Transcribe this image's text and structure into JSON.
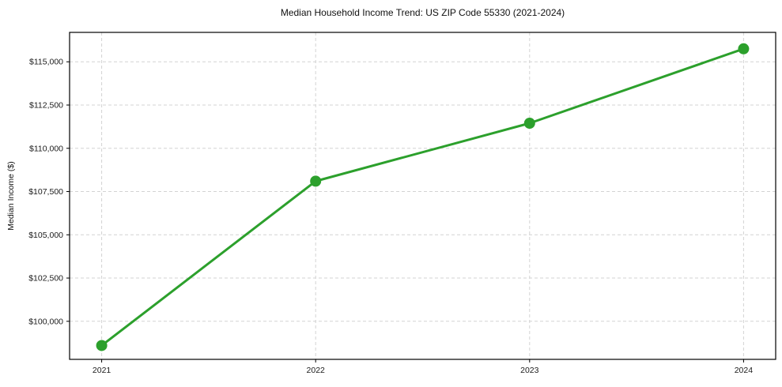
{
  "chart_data": {
    "type": "line",
    "title": "Median Household Income Trend: US ZIP Code 55330 (2021-2024)",
    "xlabel": "",
    "ylabel": "Median Income ($)",
    "categories": [
      2021,
      2022,
      2023,
      2024
    ],
    "x_tick_labels": [
      "2021",
      "2022",
      "2023",
      "2024"
    ],
    "series": [
      {
        "name": "Median Household Income",
        "values": [
          98600,
          108100,
          111450,
          115750
        ]
      }
    ],
    "y_tick_values": [
      100000,
      102500,
      105000,
      107500,
      110000,
      112500,
      115000
    ],
    "y_tick_labels": [
      "$100,000",
      "$102,500",
      "$105,000",
      "$107,500",
      "$110,000",
      "$112,500",
      "$115,000"
    ],
    "xlim": [
      2020.85,
      2024.15
    ],
    "ylim": [
      97800,
      116700
    ],
    "grid": true,
    "legend": false,
    "colors": {
      "line": "#2ca02c",
      "marker": "#2ca02c",
      "grid": "#d3d3d3",
      "spine": "#000000",
      "text": "#1a1a1a",
      "background": "#ffffff"
    },
    "marker_style": "circle"
  }
}
